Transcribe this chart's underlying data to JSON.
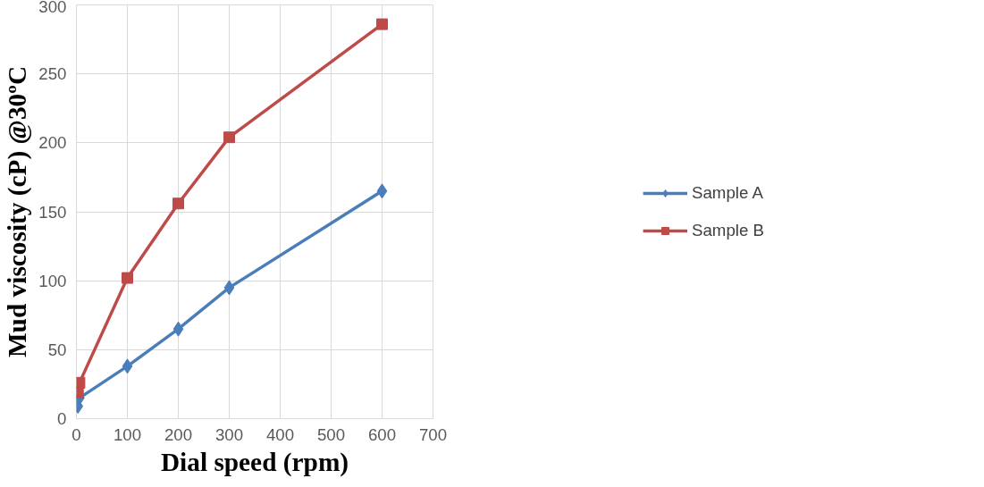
{
  "chart_data": {
    "type": "line",
    "xlabel": "Dial speed (rpm)",
    "ylabel": "Mud viscosity (cP) @30ºC",
    "x": [
      3,
      6,
      100,
      200,
      300,
      600
    ],
    "series": [
      {
        "name": "Sample A",
        "color": "#4a7ebb",
        "marker": "diamond",
        "values": [
          9,
          15,
          38,
          65,
          95,
          165
        ]
      },
      {
        "name": "Sample B",
        "color": "#be4b48",
        "marker": "square",
        "values": [
          19,
          26,
          102,
          156,
          204,
          286
        ]
      }
    ],
    "xlim": [
      0,
      700
    ],
    "xticks": [
      0,
      100,
      200,
      300,
      400,
      500,
      600,
      700
    ],
    "ylim": [
      0,
      300
    ],
    "yticks": [
      0,
      50,
      100,
      150,
      200,
      250,
      300
    ],
    "grid": true,
    "legend": "right",
    "line_style": "solid"
  }
}
